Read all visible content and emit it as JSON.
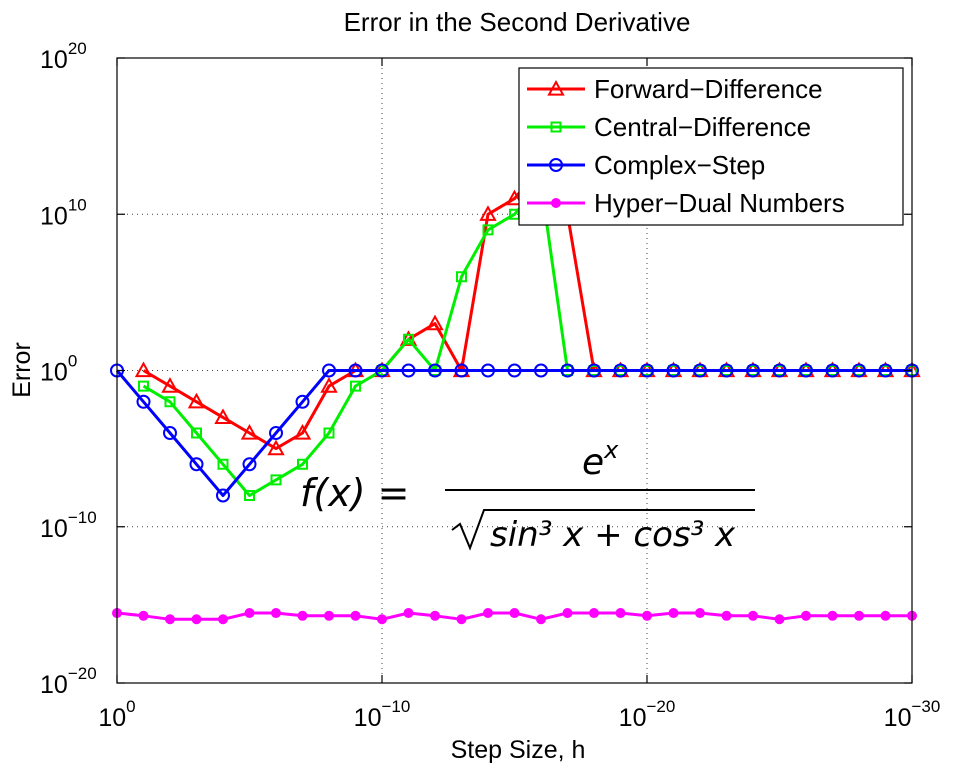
{
  "chart_data": {
    "type": "line",
    "title": "Error in the Second Derivative",
    "xlabel": "Step Size, h",
    "ylabel": "Error",
    "x_scale": "log",
    "y_scale": "log",
    "x_reversed": true,
    "xlim": [
      1,
      1e-30
    ],
    "ylim": [
      1e-20,
      1e+20
    ],
    "grid": true,
    "legend_position": "top-right",
    "x_ticks": [
      {
        "base": "10",
        "exp": "0"
      },
      {
        "base": "10",
        "exp": "−10"
      },
      {
        "base": "10",
        "exp": "−20"
      },
      {
        "base": "10",
        "exp": "−30"
      }
    ],
    "y_ticks": [
      {
        "base": "10",
        "exp": "20"
      },
      {
        "base": "10",
        "exp": "10"
      },
      {
        "base": "10",
        "exp": "0"
      },
      {
        "base": "10",
        "exp": "−10"
      },
      {
        "base": "10",
        "exp": "−20"
      }
    ],
    "series": [
      {
        "name": "Forward−Difference",
        "color": "#ff0000",
        "marker": "triangle",
        "points": [
          [
            0.1,
            1.0
          ],
          [
            0.01,
            0.1
          ],
          [
            0.001,
            0.01
          ],
          [
            0.0001,
            0.001
          ],
          [
            1e-05,
            0.0001
          ],
          [
            1e-06,
            1e-05
          ],
          [
            1e-07,
            0.0001
          ],
          [
            1e-08,
            0.1
          ],
          [
            1e-09,
            1.0
          ],
          [
            1e-10,
            1.0
          ],
          [
            1e-11,
            100.0
          ],
          [
            1e-12,
            1000.0
          ],
          [
            1e-13,
            1.0
          ],
          [
            1e-14,
            10000000000.0
          ],
          [
            1e-15,
            100000000000.0
          ],
          [
            1e-16,
            10000000000000.0
          ],
          [
            1e-17,
            10000000000.0
          ],
          [
            1e-18,
            1.0
          ],
          [
            1e-19,
            1.0
          ],
          [
            1e-20,
            1.0
          ],
          [
            1e-21,
            1.0
          ],
          [
            1e-22,
            1.0
          ],
          [
            1e-23,
            1.0
          ],
          [
            1e-24,
            1.0
          ],
          [
            1e-25,
            1.0
          ],
          [
            1e-26,
            1.0
          ],
          [
            1e-27,
            1.0
          ],
          [
            1e-28,
            1.0
          ],
          [
            1e-29,
            1.0
          ],
          [
            1e-30,
            1.0
          ]
        ]
      },
      {
        "name": "Central−Difference",
        "color": "#00ee00",
        "marker": "square",
        "points": [
          [
            0.1,
            0.1
          ],
          [
            0.01,
            0.01
          ],
          [
            0.001,
            0.0001
          ],
          [
            0.0001,
            1e-06
          ],
          [
            1e-05,
            1e-08
          ],
          [
            1e-06,
            1e-07
          ],
          [
            1e-07,
            1e-06
          ],
          [
            1e-08,
            0.0001
          ],
          [
            1e-09,
            0.1
          ],
          [
            1e-10,
            1.0
          ],
          [
            1e-11,
            100.0
          ],
          [
            1e-12,
            1.0
          ],
          [
            1e-13,
            1000000.0
          ],
          [
            1e-14,
            1000000000.0
          ],
          [
            1e-15,
            10000000000.0
          ],
          [
            1e-16,
            1000000000000.0
          ],
          [
            1e-17,
            1.0
          ],
          [
            1e-18,
            1.0
          ],
          [
            1e-19,
            1.0
          ],
          [
            1e-20,
            1.0
          ],
          [
            1e-21,
            1.0
          ],
          [
            1e-22,
            1.0
          ],
          [
            1e-23,
            1.0
          ],
          [
            1e-24,
            1.0
          ],
          [
            1e-25,
            1.0
          ],
          [
            1e-26,
            1.0
          ],
          [
            1e-27,
            1.0
          ],
          [
            1e-28,
            1.0
          ],
          [
            1e-29,
            1.0
          ],
          [
            1e-30,
            1.0
          ]
        ]
      },
      {
        "name": "Complex−Step",
        "color": "#0000ff",
        "marker": "circle",
        "points": [
          [
            1.0,
            1.0
          ],
          [
            0.1,
            0.01
          ],
          [
            0.01,
            0.0001
          ],
          [
            0.001,
            1e-06
          ],
          [
            0.0001,
            1e-08
          ],
          [
            1e-05,
            1e-06
          ],
          [
            1e-06,
            0.0001
          ],
          [
            1e-07,
            0.01
          ],
          [
            1e-08,
            1.0
          ],
          [
            1e-09,
            1.0
          ],
          [
            1e-10,
            1.0
          ],
          [
            1e-11,
            1.0
          ],
          [
            1e-12,
            1.0
          ],
          [
            1e-13,
            1.0
          ],
          [
            1e-14,
            1.0
          ],
          [
            1e-15,
            1.0
          ],
          [
            1e-16,
            1.0
          ],
          [
            1e-17,
            1.0
          ],
          [
            1e-18,
            1.0
          ],
          [
            1e-19,
            1.0
          ],
          [
            1e-20,
            1.0
          ],
          [
            1e-21,
            1.0
          ],
          [
            1e-22,
            1.0
          ],
          [
            1e-23,
            1.0
          ],
          [
            1e-24,
            1.0
          ],
          [
            1e-25,
            1.0
          ],
          [
            1e-26,
            1.0
          ],
          [
            1e-27,
            1.0
          ],
          [
            1e-28,
            1.0
          ],
          [
            1e-29,
            1.0
          ],
          [
            1e-30,
            1.0
          ]
        ]
      },
      {
        "name": "Hyper−Dual Numbers",
        "color": "#ff00ff",
        "marker": "dot",
        "points": [
          [
            1.0,
            3e-16
          ],
          [
            0.1,
            2e-16
          ],
          [
            0.01,
            1.2e-16
          ],
          [
            0.001,
            1.2e-16
          ],
          [
            0.0001,
            1.2e-16
          ],
          [
            1e-05,
            3e-16
          ],
          [
            1e-06,
            3e-16
          ],
          [
            1e-07,
            2e-16
          ],
          [
            1e-08,
            2e-16
          ],
          [
            1e-09,
            2e-16
          ],
          [
            1e-10,
            1.2e-16
          ],
          [
            1e-11,
            3e-16
          ],
          [
            1e-12,
            2e-16
          ],
          [
            1e-13,
            1.2e-16
          ],
          [
            1e-14,
            3e-16
          ],
          [
            1e-15,
            3e-16
          ],
          [
            1e-16,
            1.2e-16
          ],
          [
            1e-17,
            3e-16
          ],
          [
            1e-18,
            3e-16
          ],
          [
            1e-19,
            3e-16
          ],
          [
            1e-20,
            2e-16
          ],
          [
            1e-21,
            3e-16
          ],
          [
            1e-22,
            3e-16
          ],
          [
            1e-23,
            2e-16
          ],
          [
            1e-24,
            2e-16
          ],
          [
            1e-25,
            1.2e-16
          ],
          [
            1e-26,
            2e-16
          ],
          [
            1e-27,
            2e-16
          ],
          [
            1e-28,
            2e-16
          ],
          [
            1e-29,
            2e-16
          ],
          [
            1e-30,
            2e-16
          ]
        ]
      }
    ],
    "annotation": {
      "lhs": "f(x) =",
      "numerator": "e",
      "numerator_sup": "x",
      "denominator": "sin³ x + cos³ x"
    }
  }
}
